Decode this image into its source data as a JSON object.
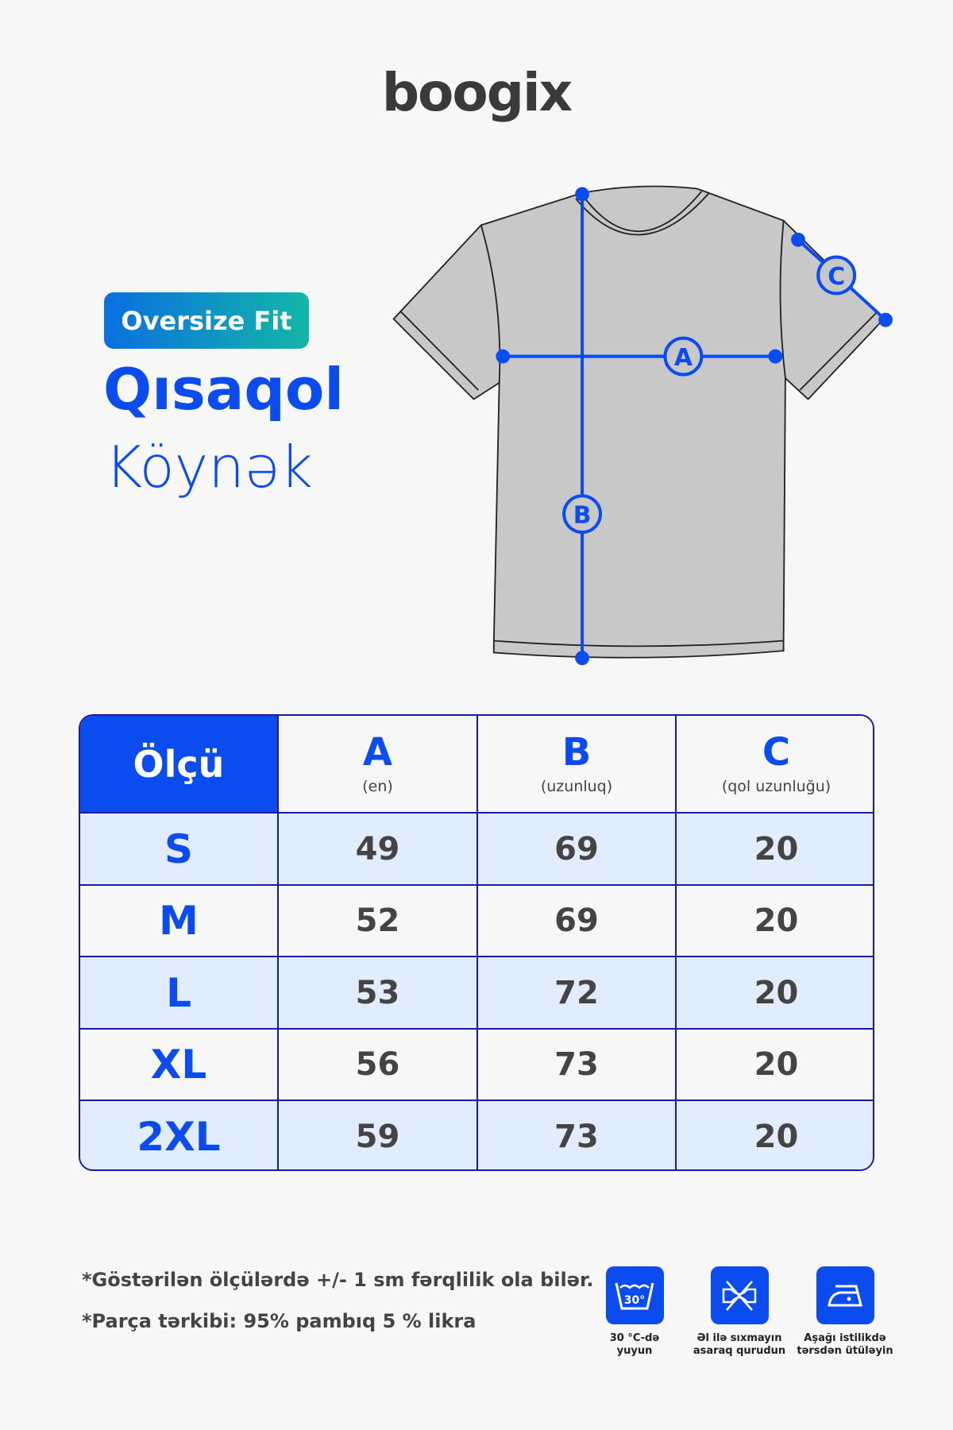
{
  "brand": "boogix",
  "badge": "Oversize Fit",
  "title_line1": "Qısaqol",
  "title_line2": "Köynək",
  "diagram_labels": {
    "a": "A",
    "b": "B",
    "c": "C"
  },
  "accent": "#0a4cf0",
  "table": {
    "header": {
      "size": "Ölçü",
      "cols": [
        {
          "letter": "A",
          "desc": "(en)"
        },
        {
          "letter": "B",
          "desc": "(uzunluq)"
        },
        {
          "letter": "C",
          "desc": "(qol uzunluğu)"
        }
      ]
    },
    "rows": [
      {
        "size": "S",
        "a": "49",
        "b": "69",
        "c": "20"
      },
      {
        "size": "M",
        "a": "52",
        "b": "69",
        "c": "20"
      },
      {
        "size": "L",
        "a": "53",
        "b": "72",
        "c": "20"
      },
      {
        "size": "XL",
        "a": "56",
        "b": "73",
        "c": "20"
      },
      {
        "size": "2XL",
        "a": "59",
        "b": "73",
        "c": "20"
      }
    ]
  },
  "notes": [
    "*Göstərilən ölçülərdə +/- 1 sm fərqlilik ola bilər.",
    "*Parça tərkibi: 95% pambıq 5 % likra"
  ],
  "care": [
    {
      "icon": "wash-30-icon",
      "temp": "30°",
      "label1": "30 °C-də",
      "label2": "yuyun"
    },
    {
      "icon": "no-wring-icon",
      "label1": "Əl ilə sıxmayın",
      "label2": "asaraq qurudun"
    },
    {
      "icon": "iron-low-icon",
      "label1": "Aşağı istilikdə",
      "label2": "tərsdən ütüləyin"
    }
  ]
}
